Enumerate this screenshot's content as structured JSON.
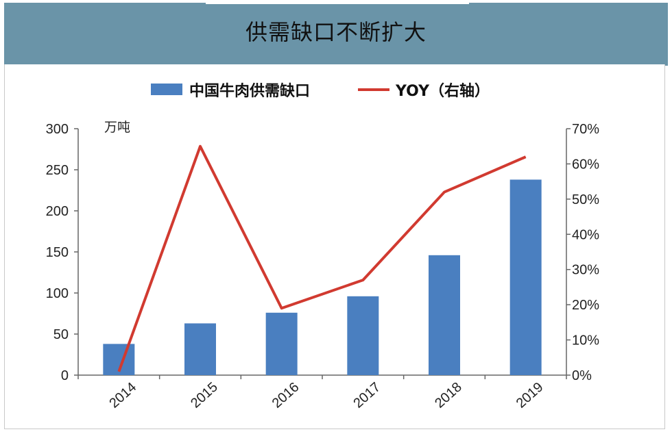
{
  "page": {
    "title": "供需缺口不断扩大"
  },
  "chart_data": {
    "type": "bar",
    "categories": [
      "2014",
      "2015",
      "2016",
      "2017",
      "2018",
      "2019"
    ],
    "series": [
      {
        "name": "中国牛肉供需缺口",
        "type": "bar",
        "axis": "left",
        "color": "#4a7fc0",
        "values": [
          38,
          63,
          76,
          96,
          146,
          238
        ]
      },
      {
        "name": "YOY（右轴）",
        "type": "line",
        "axis": "right",
        "color": "#d13a30",
        "values": [
          1,
          65,
          19,
          27,
          52,
          62
        ]
      }
    ],
    "left_axis": {
      "unit_label": "万吨",
      "ylim": [
        0,
        300
      ],
      "ticks": [
        "0",
        "50",
        "100",
        "150",
        "200",
        "250",
        "300"
      ]
    },
    "right_axis": {
      "ylim": [
        0,
        70
      ],
      "ticks": [
        "0%",
        "10%",
        "20%",
        "30%",
        "40%",
        "50%",
        "60%",
        "70%"
      ]
    },
    "grid": false,
    "legend_position": "top"
  }
}
